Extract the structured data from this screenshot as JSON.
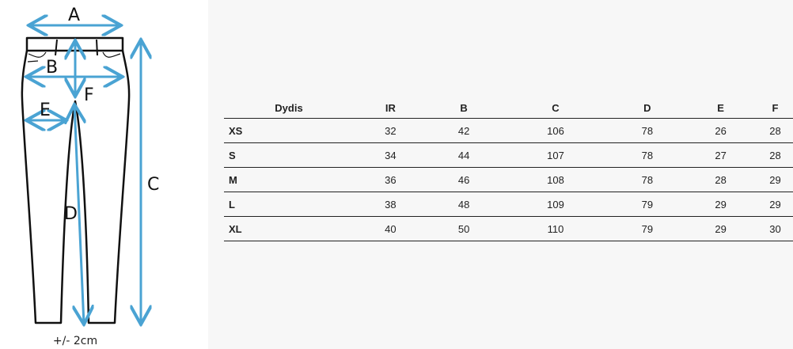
{
  "diagram": {
    "labels": {
      "A": "A",
      "B": "B",
      "C": "C",
      "D": "D",
      "E": "E",
      "F": "F"
    },
    "tolerance_note": "+/- 2cm",
    "arrow_color": "#4aa3d3"
  },
  "size_table": {
    "headers": [
      "Dydis",
      "IR",
      "B",
      "C",
      "D",
      "E",
      "F"
    ],
    "rows": [
      {
        "size": "XS",
        "values": [
          "32",
          "42",
          "106",
          "78",
          "26",
          "28"
        ]
      },
      {
        "size": "S",
        "values": [
          "34",
          "44",
          "107",
          "78",
          "27",
          "28"
        ]
      },
      {
        "size": "M",
        "values": [
          "36",
          "46",
          "108",
          "78",
          "28",
          "29"
        ]
      },
      {
        "size": "L",
        "values": [
          "38",
          "48",
          "109",
          "79",
          "29",
          "29"
        ]
      },
      {
        "size": "XL",
        "values": [
          "40",
          "50",
          "110",
          "79",
          "29",
          "30"
        ]
      }
    ]
  }
}
